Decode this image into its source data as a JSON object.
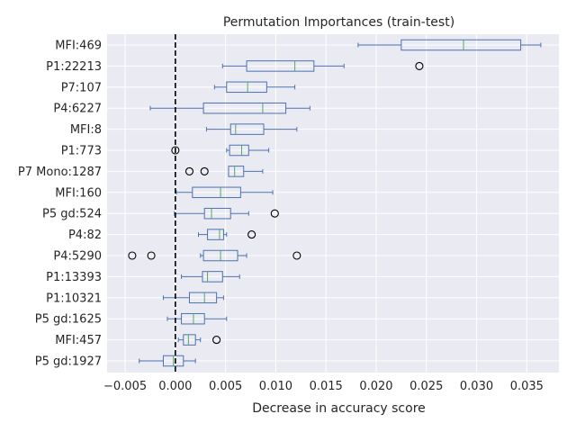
{
  "chart_data": {
    "type": "boxplot",
    "orientation": "horizontal",
    "title": "Permutation Importances (train-test)",
    "xlabel": "Decrease in accuracy score",
    "ylabel": "",
    "xlim": [
      -0.0068,
      0.0382
    ],
    "xticks": [
      -0.005,
      0.0,
      0.005,
      0.01,
      0.015,
      0.02,
      0.025,
      0.03,
      0.035
    ],
    "xtick_labels": [
      "−0.005",
      "0.000",
      "0.005",
      "0.010",
      "0.015",
      "0.020",
      "0.025",
      "0.030",
      "0.035"
    ],
    "grid": true,
    "reference_line": {
      "x": 0.0,
      "style": "dashed"
    },
    "colors": {
      "background": "#EAEAF2",
      "grid": "#FFFFFF",
      "box": "#4C72B0",
      "median": "#55A868",
      "flier": "#000000",
      "reference_line": "#000000"
    },
    "categories": [
      "MFI:469",
      "P1:22213",
      "P7:107",
      "P4:6227",
      "MFI:8",
      "P1:773",
      "P7 Mono:1287",
      "MFI:160",
      "P5 gd:524",
      "P4:82",
      "P4:5290",
      "P1:13393",
      "P1:10321",
      "P5 gd:1625",
      "MFI:457",
      "P5 gd:1927"
    ],
    "boxes": [
      {
        "label": "MFI:469",
        "whislo": 0.0182,
        "q1": 0.0225,
        "median": 0.0287,
        "q3": 0.0344,
        "whishi": 0.0364,
        "fliers": []
      },
      {
        "label": "P1:22213",
        "whislo": 0.0047,
        "q1": 0.0071,
        "median": 0.0119,
        "q3": 0.0138,
        "whishi": 0.0168,
        "fliers": [
          0.0243
        ]
      },
      {
        "label": "P7:107",
        "whislo": 0.0039,
        "q1": 0.0051,
        "median": 0.0072,
        "q3": 0.0091,
        "whishi": 0.0119,
        "fliers": []
      },
      {
        "label": "P4:6227",
        "whislo": -0.0025,
        "q1": 0.0028,
        "median": 0.0087,
        "q3": 0.011,
        "whishi": 0.0134,
        "fliers": []
      },
      {
        "label": "MFI:8",
        "whislo": 0.0031,
        "q1": 0.0055,
        "median": 0.006,
        "q3": 0.0088,
        "whishi": 0.0121,
        "fliers": []
      },
      {
        "label": "P1:773",
        "whislo": 0.0051,
        "q1": 0.0054,
        "median": 0.0066,
        "q3": 0.0073,
        "whishi": 0.0093,
        "fliers": [
          0.0
        ]
      },
      {
        "label": "P7 Mono:1287",
        "whislo": 0.0053,
        "q1": 0.0053,
        "median": 0.0059,
        "q3": 0.0068,
        "whishi": 0.0087,
        "fliers": [
          0.0014,
          0.0029
        ]
      },
      {
        "label": "MFI:160",
        "whislo": 0.0001,
        "q1": 0.0017,
        "median": 0.0045,
        "q3": 0.0065,
        "whishi": 0.0097,
        "fliers": []
      },
      {
        "label": "P5 gd:524",
        "whislo": -0.0001,
        "q1": 0.0029,
        "median": 0.0036,
        "q3": 0.0055,
        "whishi": 0.0073,
        "fliers": [
          0.0099
        ]
      },
      {
        "label": "P4:82",
        "whislo": 0.0023,
        "q1": 0.0032,
        "median": 0.0044,
        "q3": 0.0048,
        "whishi": 0.0051,
        "fliers": [
          0.0076
        ]
      },
      {
        "label": "P4:5290",
        "whislo": 0.0025,
        "q1": 0.0028,
        "median": 0.0045,
        "q3": 0.0062,
        "whishi": 0.0071,
        "fliers": [
          -0.0043,
          -0.0024,
          0.0121
        ]
      },
      {
        "label": "P1:13393",
        "whislo": 0.0006,
        "q1": 0.0027,
        "median": 0.0032,
        "q3": 0.0047,
        "whishi": 0.0064,
        "fliers": []
      },
      {
        "label": "P1:10321",
        "whislo": -0.0012,
        "q1": 0.0014,
        "median": 0.0029,
        "q3": 0.0041,
        "whishi": 0.0048,
        "fliers": []
      },
      {
        "label": "P5 gd:1625",
        "whislo": -0.0008,
        "q1": 0.0006,
        "median": 0.0018,
        "q3": 0.0029,
        "whishi": 0.0051,
        "fliers": []
      },
      {
        "label": "MFI:457",
        "whislo": 0.0003,
        "q1": 0.0008,
        "median": 0.0013,
        "q3": 0.002,
        "whishi": 0.0025,
        "fliers": [
          0.0041
        ]
      },
      {
        "label": "P5 gd:1927",
        "whislo": -0.0036,
        "q1": -0.0012,
        "median": -0.0002,
        "q3": 0.0008,
        "whishi": 0.002,
        "fliers": []
      }
    ]
  }
}
